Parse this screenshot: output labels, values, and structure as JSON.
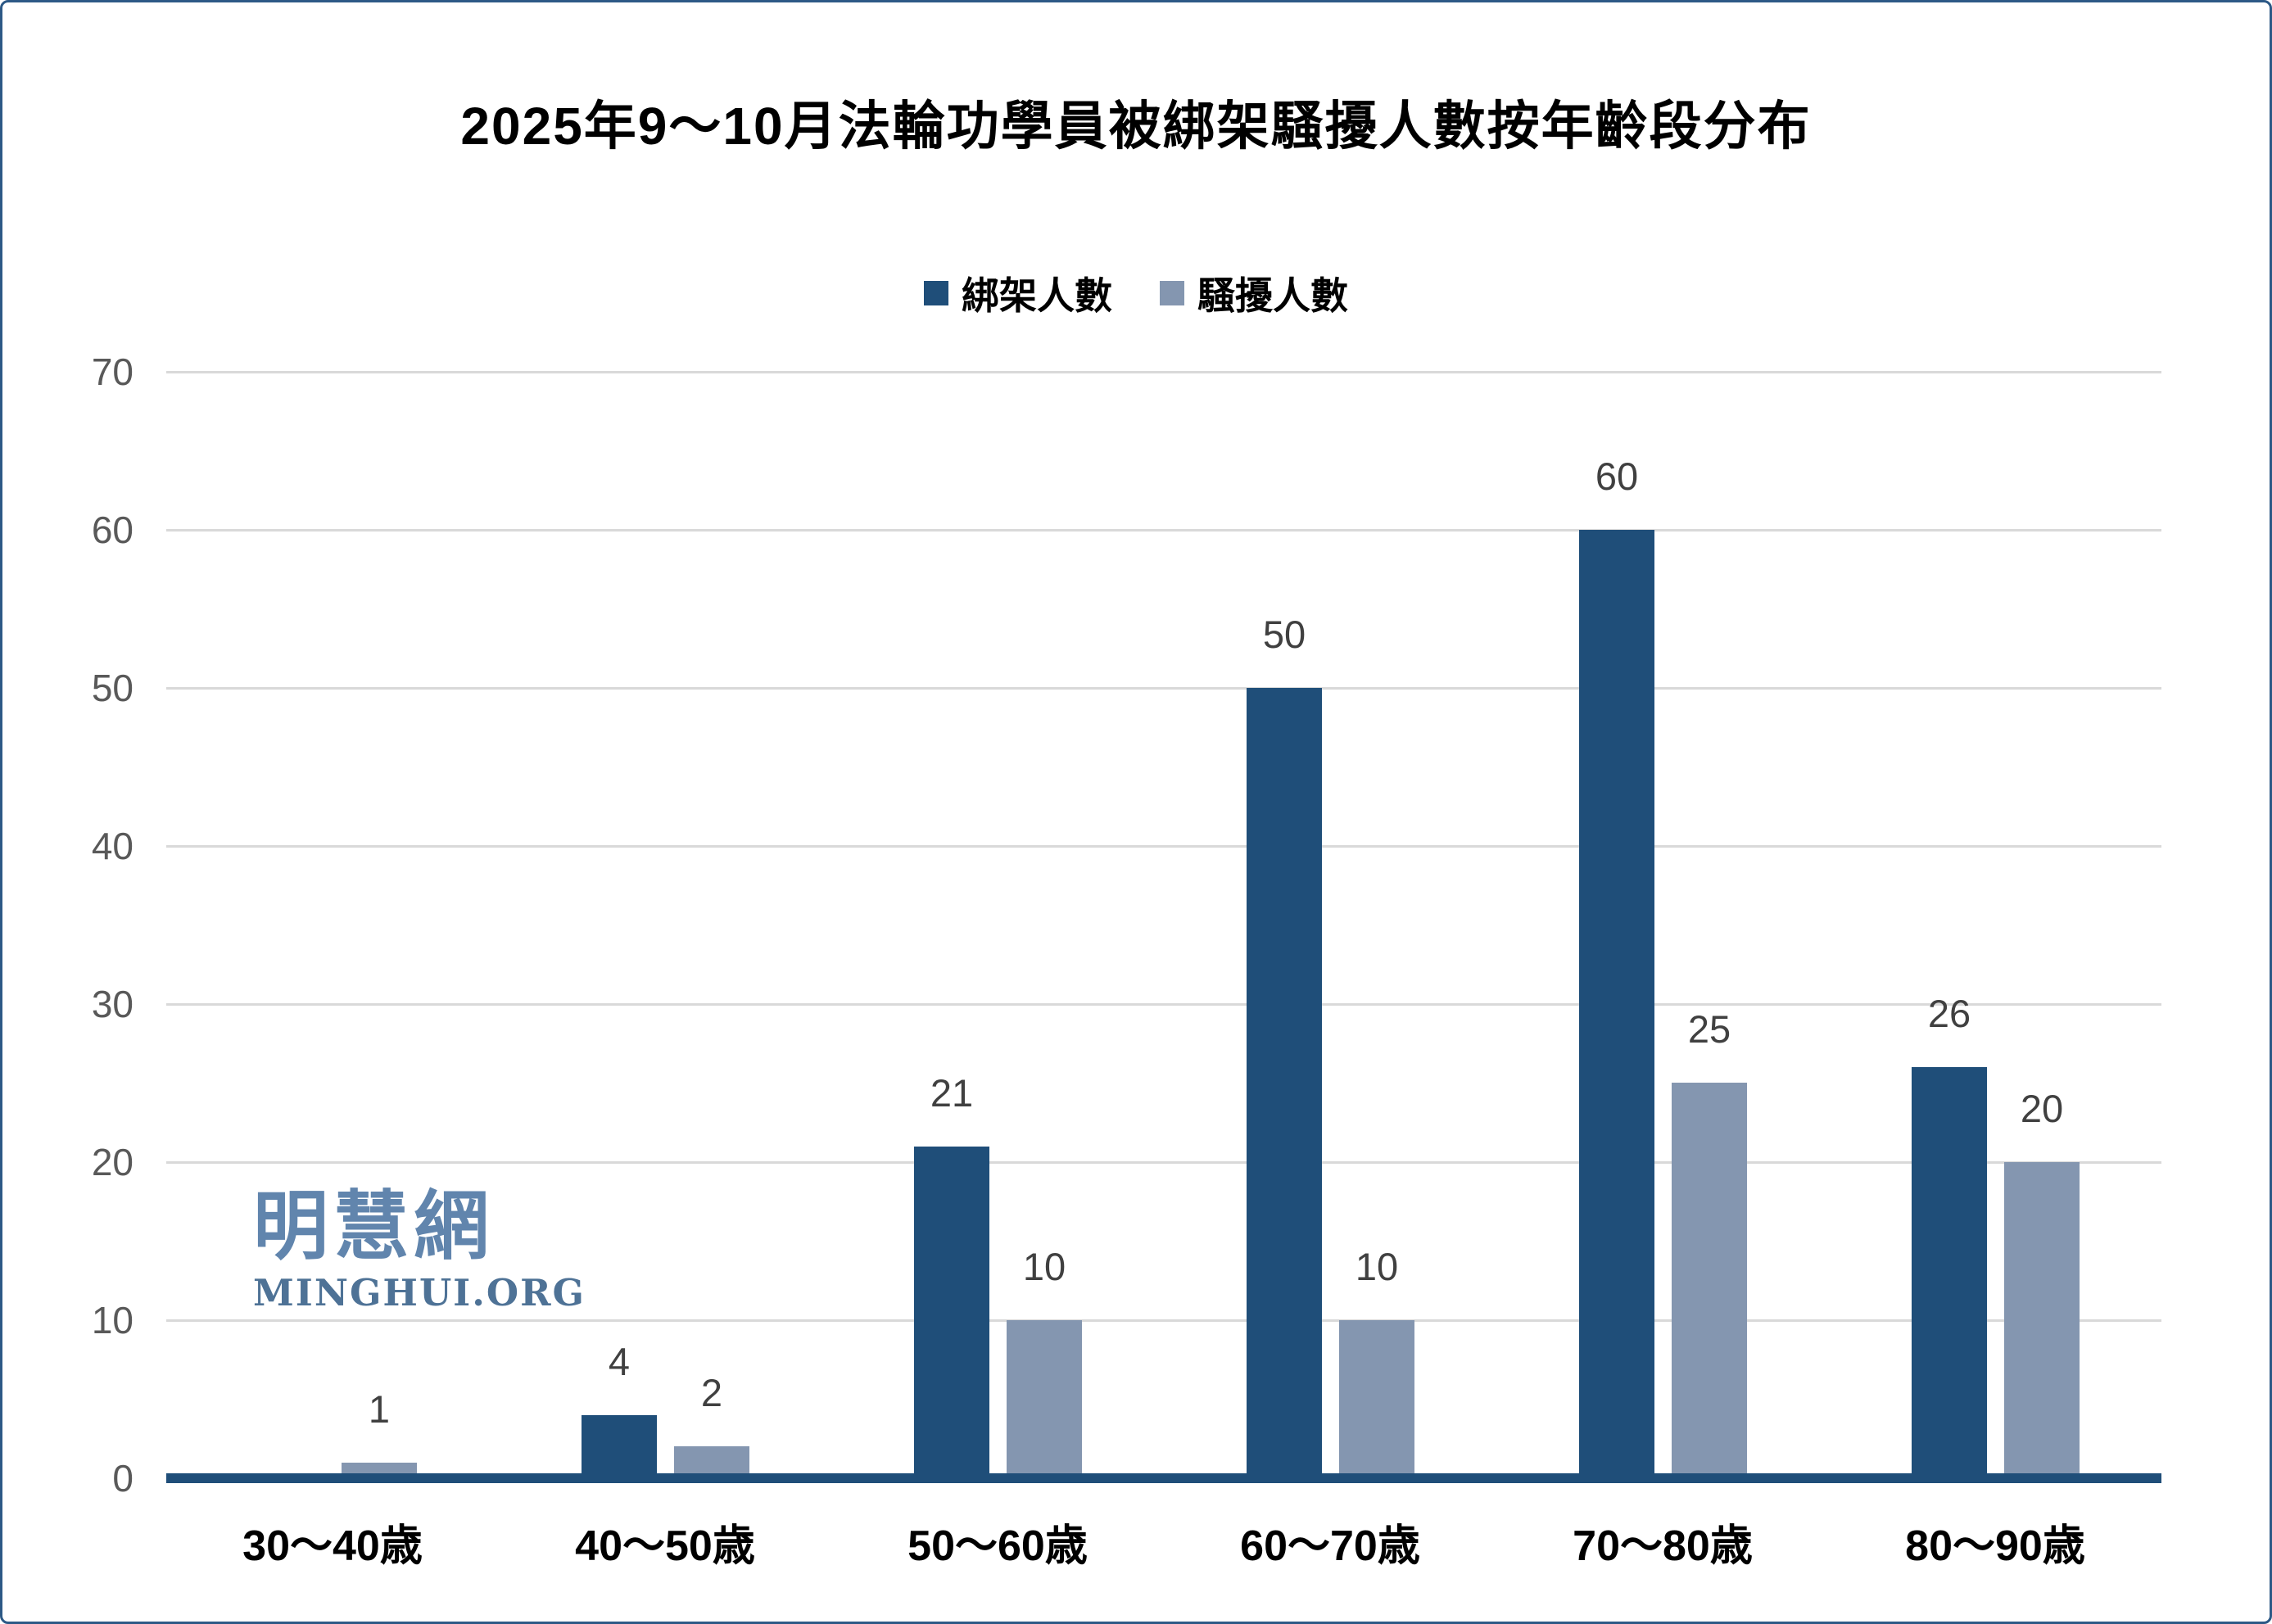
{
  "page": {
    "background": "#ffffff",
    "border_color": "#2d5986"
  },
  "title": "2025年9～10月法輪功學員被綁架騷擾人數按年齡段分布",
  "legend": {
    "position": "top-center",
    "items": [
      {
        "label": "綁架人數",
        "color": "#1f4e79"
      },
      {
        "label": "騷擾人數",
        "color": "#8496b0"
      }
    ]
  },
  "watermark": {
    "cjk": "明慧網",
    "latin": "MINGHUI.ORG",
    "cjk_color": "#6185ad",
    "latin_color": "#4e7296"
  },
  "chart_data": {
    "type": "bar",
    "title": "2025年9～10月法輪功學員被綁架騷擾人數按年齡段分布",
    "categories": [
      "30～40歳",
      "40～50歳",
      "50～60歳",
      "60～70歳",
      "70～80歳",
      "80～90歳"
    ],
    "series": [
      {
        "name": "綁架人數",
        "color": "#1f4e79",
        "values": [
          0,
          4,
          21,
          50,
          60,
          26
        ]
      },
      {
        "name": "騷擾人數",
        "color": "#8496b0",
        "values": [
          1,
          2,
          10,
          10,
          25,
          20
        ]
      }
    ],
    "xlabel": "",
    "ylabel": "",
    "ylim": [
      0,
      70
    ],
    "yticks": [
      0,
      10,
      20,
      30,
      40,
      50,
      60,
      70
    ],
    "grid": true,
    "gridline_color": "#d9d9d9",
    "axis_line_color": "#1f4e79",
    "ytick_color": "#595959",
    "data_label_color": "#404040",
    "legend_position": "top",
    "data_labels": true,
    "zero_value_labels_hidden": true
  }
}
